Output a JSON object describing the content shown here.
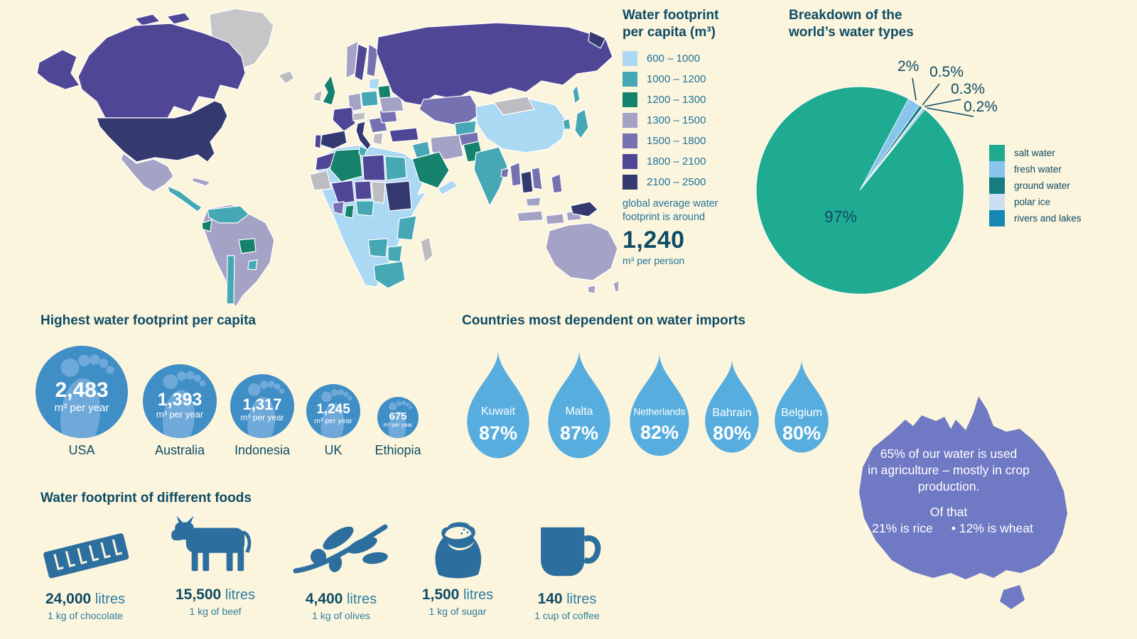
{
  "page": {
    "background": "#fcf5dd",
    "heading_color": "#0d4c66",
    "accent_teal": "#20739b"
  },
  "map": {
    "band_colors": {
      "b1": "#abd8f3",
      "b2": "#46a8b4",
      "b3": "#15826b",
      "b4": "#a5a3c5",
      "b5": "#7672b2",
      "b6": "#4f4695",
      "b7": "#343a70",
      "nodata": "#bdbdc1",
      "nodata2": "#c6c6c9"
    },
    "border_color": "#ffffff"
  },
  "map_legend": {
    "title_line1": "Water footprint",
    "title_line2": "per capita (m³)",
    "bands": [
      {
        "label": "600 – 1000"
      },
      {
        "label": "1000 – 1200"
      },
      {
        "label": "1200 – 1300"
      },
      {
        "label": "1300 – 1500"
      },
      {
        "label": "1500 – 1800"
      },
      {
        "label": "1800 – 2100"
      },
      {
        "label": "2100 – 2500"
      }
    ],
    "note_line1": "global average water",
    "note_line2": "footprint is around",
    "average_value": "1,240",
    "average_unit": "m³ per person"
  },
  "pie_section": {
    "title_line1": "Breakdown of the",
    "title_line2": "world’s water types",
    "inside_label": "97%",
    "callouts": [
      "2%",
      "0.5%",
      "0.3%",
      "0.2%"
    ],
    "legend_labels": [
      "salt water",
      "fresh water",
      "ground water",
      "polar ice",
      "rivers and lakes"
    ]
  },
  "footprints": {
    "heading": "Highest water footprint per capita",
    "unit": "m³ per year",
    "items": [
      {
        "country": "USA",
        "value": "2,483"
      },
      {
        "country": "Australia",
        "value": "1,393"
      },
      {
        "country": "Indonesia",
        "value": "1,317"
      },
      {
        "country": "UK",
        "value": "1,245"
      },
      {
        "country": "Ethiopia",
        "value": "675"
      }
    ]
  },
  "imports": {
    "heading": "Countries most dependent on water imports",
    "items": [
      {
        "country": "Kuwait",
        "pct": "87%"
      },
      {
        "country": "Malta",
        "pct": "87%"
      },
      {
        "country": "Netherlands",
        "pct": "82%"
      },
      {
        "country": "Bahrain",
        "pct": "80%"
      },
      {
        "country": "Belgium",
        "pct": "80%"
      }
    ]
  },
  "australia": {
    "line1": "65% of our water is used",
    "line2": "in agriculture – mostly in crop",
    "line3": "production.",
    "of_that": "Of that",
    "bullet_rice": "• 21% is rice",
    "bullet_wheat": "• 12% is wheat",
    "fill_color": "#7079c4"
  },
  "foods": {
    "heading": "Water footprint of different foods",
    "items": [
      {
        "value": "24,000",
        "unit": "litres",
        "caption": "1 kg of chocolate",
        "icon": "chocolate-bar-icon"
      },
      {
        "value": "15,500",
        "unit": "litres",
        "caption": "1 kg of beef",
        "icon": "cow-icon"
      },
      {
        "value": "4,400",
        "unit": "litres",
        "caption": "1 kg of olives",
        "icon": "olive-branch-icon"
      },
      {
        "value": "1,500",
        "unit": "litres",
        "caption": "1 kg of sugar",
        "icon": "sugar-sack-icon"
      },
      {
        "value": "140",
        "unit": "litres",
        "caption": "1 cup of coffee",
        "icon": "coffee-mug-icon"
      }
    ]
  },
  "chart_data": [
    {
      "id": "water-footprint-choropleth",
      "type": "heatmap",
      "subtype": "world choropleth map",
      "title": "Water footprint per capita (m³)",
      "unit": "m³ per person per year",
      "bands": [
        {
          "range": "600 – 1000",
          "color": "#abd8f3"
        },
        {
          "range": "1000 – 1200",
          "color": "#46a8b4"
        },
        {
          "range": "1200 – 1300",
          "color": "#15826b"
        },
        {
          "range": "1300 – 1500",
          "color": "#a5a3c5"
        },
        {
          "range": "1500 – 1800",
          "color": "#7672b2"
        },
        {
          "range": "1800 – 2100",
          "color": "#4f4695"
        },
        {
          "range": "2100 – 2500",
          "color": "#343a70"
        }
      ],
      "no_data_color": "#bdbdc1",
      "global_average": 1240,
      "notable_countries": {
        "USA": "2100 – 2500",
        "Canada": "1800 – 2100",
        "Mexico": "1300 – 1500",
        "Brazil": "1300 – 1500",
        "Bolivia": "1200 – 1300",
        "Chile": "1000 – 1200",
        "UK": "1200 – 1300",
        "France": "1800 – 2100",
        "Spain": "2100 – 2500",
        "Italy": "2100 – 2500",
        "Germany": "1300 – 1500",
        "Poland": "1000 – 1200",
        "Russia": "1800 – 2100",
        "China": "600 – 1000",
        "Mongolia": "no data",
        "India": "1000 – 1200",
        "Pakistan": "1200 – 1300",
        "Thailand": "2100 – 2500",
        "Japan": "1000 – 1200",
        "Saudi Arabia": "1200 – 1300",
        "Egypt": "1000 – 1200",
        "Sudan": "2100 – 2500",
        "Algeria": "1200 – 1300",
        "Libya": "1800 – 2100",
        "Ethiopia": "600 – 1000",
        "South Africa": "1000 – 1200",
        "Australia": "1300 – 1500",
        "Indonesia": "1300 – 1500",
        "Papua New Guinea": "2100 – 2500",
        "Greenland": "no data",
        "Madagascar": "no data"
      }
    },
    {
      "id": "water-types-pie",
      "type": "pie",
      "title": "Breakdown of the world’s water types",
      "start_angle_deg": 28,
      "slices": [
        {
          "label": "fresh water",
          "value": 2,
          "display": "2%",
          "color": "#88c4ec"
        },
        {
          "label": "ground water",
          "value": 0.5,
          "display": "0.5%",
          "color": "#157d80"
        },
        {
          "label": "polar ice",
          "value": 0.3,
          "display": "0.3%",
          "color": "#cadff2"
        },
        {
          "label": "rivers and lakes",
          "value": 0.2,
          "display": "0.2%",
          "color": "#1687b2"
        },
        {
          "label": "salt water",
          "value": 97,
          "display": "97%",
          "color": "#1fab92"
        }
      ],
      "legend_position": "right",
      "legend_order": [
        "salt water",
        "fresh water",
        "ground water",
        "polar ice",
        "rivers and lakes"
      ]
    },
    {
      "id": "highest-footprints",
      "type": "bar",
      "style": "proportional circles with footprint icon",
      "title": "Highest water footprint per capita",
      "unit": "m³ per year",
      "categories": [
        "USA",
        "Australia",
        "Indonesia",
        "UK",
        "Ethiopia"
      ],
      "values": [
        2483,
        1393,
        1317,
        1245,
        675
      ],
      "value_displays": [
        "2,483",
        "1,393",
        "1,317",
        "1,245",
        "675"
      ]
    },
    {
      "id": "import-dependency",
      "type": "bar",
      "style": "water drop pictograms",
      "title": "Countries most dependent on water imports",
      "unit": "percent of water imported",
      "categories": [
        "Kuwait",
        "Malta",
        "Netherlands",
        "Bahrain",
        "Belgium"
      ],
      "values": [
        87,
        87,
        82,
        80,
        80
      ],
      "value_displays": [
        "87%",
        "87%",
        "82%",
        "80%",
        "80%"
      ]
    },
    {
      "id": "food-water-footprint",
      "type": "bar",
      "style": "pictogram",
      "title": "Water footprint of different foods",
      "unit": "litres of water",
      "categories": [
        "1 kg of chocolate",
        "1 kg of beef",
        "1 kg of olives",
        "1 kg of sugar",
        "1 cup of coffee"
      ],
      "values": [
        24000,
        15500,
        4400,
        1500,
        140
      ],
      "value_displays": [
        "24,000",
        "15,500",
        "4,400",
        "1,500",
        "140"
      ]
    },
    {
      "id": "australia-agriculture-note",
      "type": "table",
      "rows": [
        [
          "water used in agriculture",
          "65%"
        ],
        [
          "of that – rice",
          "21%"
        ],
        [
          "of that – wheat",
          "12%"
        ]
      ]
    }
  ]
}
